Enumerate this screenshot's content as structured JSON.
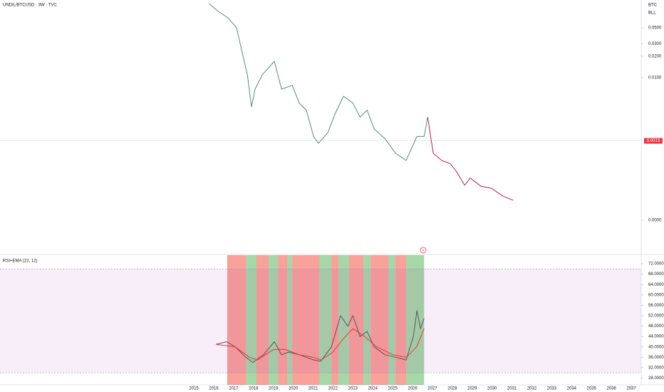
{
  "chart_data": [
    {
      "type": "line",
      "title": "UNDIL/BTCUSD · 3W · TVC",
      "currency_labels": [
        "BTC",
        "BLL"
      ],
      "log_scale": true,
      "xlim": [
        2005.25,
        2037.5
      ],
      "ylim": [
        4.9e-05,
        0.123
      ],
      "yticks": [
        {
          "value": 0.05,
          "label": "0.0500"
        },
        {
          "value": 0.03,
          "label": "0.0300"
        },
        {
          "value": 0.02,
          "label": "0.0200"
        },
        {
          "value": 0.01,
          "label": "0.0100"
        },
        {
          "value": 0.0001,
          "label": "0.0000"
        }
      ],
      "last_value": 0.0013,
      "last_color": "#f23645",
      "series": [
        {
          "color": "#4d8f7a",
          "x": [
            2015.75,
            2016.18,
            2016.72,
            2017.15,
            2017.44,
            2017.69,
            2017.9,
            2018.08,
            2018.44,
            2019.05,
            2019.41,
            2019.95,
            2020.3,
            2020.66,
            2021.02,
            2021.27,
            2021.74,
            2022.1,
            2022.53,
            2023.0,
            2023.36,
            2023.71,
            2024.07,
            2024.61,
            2025.15,
            2025.68,
            2026.22,
            2026.58,
            2026.76
          ],
          "values": [
            0.11,
            0.087,
            0.069,
            0.05,
            0.022,
            0.011,
            0.0039,
            0.0069,
            0.011,
            0.017,
            0.0069,
            0.0078,
            0.0044,
            0.0035,
            0.0015,
            0.0012,
            0.0017,
            0.0031,
            0.0055,
            0.0044,
            0.0028,
            0.0035,
            0.0019,
            0.0014,
            0.00087,
            0.00069,
            0.0015,
            0.0015,
            0.0028
          ]
        },
        {
          "color": "#c2185b",
          "x": [
            2026.76,
            2027.04,
            2027.47,
            2027.9,
            2028.19,
            2028.62,
            2028.9,
            2029.44,
            2029.98,
            2030.52,
            2031.06
          ],
          "values": [
            0.0028,
            0.00087,
            0.00069,
            0.00062,
            0.00049,
            0.00031,
            0.00039,
            0.0003,
            0.00028,
            0.00022,
            0.00019
          ]
        }
      ]
    },
    {
      "type": "line",
      "title": "RSI+EMA (22, 12)",
      "log_scale": false,
      "xlim": [
        2005.25,
        2037.5
      ],
      "ylim": [
        25.4,
        75.3
      ],
      "yticks": [
        {
          "value": 72,
          "label": "72.0000"
        },
        {
          "value": 68,
          "label": "68.0000"
        },
        {
          "value": 64,
          "label": "64.0000"
        },
        {
          "value": 60,
          "label": "60.0000"
        },
        {
          "value": 56,
          "label": "56.0000"
        },
        {
          "value": 52,
          "label": "52.0000"
        },
        {
          "value": 48,
          "label": "48.0000"
        },
        {
          "value": 44,
          "label": "44.0000"
        },
        {
          "value": 40,
          "label": "40.0000"
        },
        {
          "value": 36,
          "label": "36.0000"
        },
        {
          "value": 32,
          "label": "32.0000"
        },
        {
          "value": 28,
          "label": "28.0000"
        }
      ],
      "xticks": [
        2015,
        2016,
        2017,
        2018,
        2019,
        2020,
        2021,
        2022,
        2023,
        2024,
        2025,
        2026,
        2027,
        2028,
        2029,
        2030,
        2031,
        2032,
        2033,
        2034,
        2035,
        2036,
        2037
      ],
      "band_lower": 30,
      "band_upper": 70,
      "band_color": "#9c27b0",
      "zones": [
        {
          "start": 2016.68,
          "end": 2017.62,
          "color": "#f44336"
        },
        {
          "start": 2017.62,
          "end": 2018.15,
          "color": "#4caf50"
        },
        {
          "start": 2018.15,
          "end": 2018.76,
          "color": "#f44336"
        },
        {
          "start": 2018.76,
          "end": 2019.23,
          "color": "#4caf50"
        },
        {
          "start": 2019.23,
          "end": 2019.7,
          "color": "#f44336"
        },
        {
          "start": 2019.7,
          "end": 2019.95,
          "color": "#4caf50"
        },
        {
          "start": 2019.95,
          "end": 2021.31,
          "color": "#f44336"
        },
        {
          "start": 2021.31,
          "end": 2021.92,
          "color": "#4caf50"
        },
        {
          "start": 2021.92,
          "end": 2022.28,
          "color": "#f44336"
        },
        {
          "start": 2022.28,
          "end": 2022.81,
          "color": "#4caf50"
        },
        {
          "start": 2022.81,
          "end": 2023.53,
          "color": "#f44336"
        },
        {
          "start": 2023.53,
          "end": 2023.89,
          "color": "#4caf50"
        },
        {
          "start": 2023.89,
          "end": 2024.78,
          "color": "#f44336"
        },
        {
          "start": 2024.78,
          "end": 2025.14,
          "color": "#4caf50"
        },
        {
          "start": 2025.14,
          "end": 2025.68,
          "color": "#f44336"
        },
        {
          "start": 2025.68,
          "end": 2026.58,
          "color": "#4caf50"
        }
      ],
      "series": [
        {
          "color": "#555555",
          "x": [
            2016.11,
            2016.65,
            2017.08,
            2017.62,
            2017.97,
            2018.51,
            2019.05,
            2019.41,
            2019.77,
            2020.3,
            2021.02,
            2021.38,
            2021.92,
            2022.38,
            2022.74,
            2023.0,
            2023.36,
            2023.71,
            2024.07,
            2024.61,
            2025.15,
            2025.68,
            2026.04,
            2026.22,
            2026.4,
            2026.58
          ],
          "values": [
            41,
            42,
            40,
            36,
            34,
            37,
            42,
            37,
            38,
            37,
            35,
            34.5,
            40,
            52,
            48,
            52,
            44,
            46,
            40,
            37,
            36,
            35,
            44,
            54,
            47,
            51
          ]
        },
        {
          "color": "#e53935",
          "x": [
            2016.11,
            2017.08,
            2017.8,
            2018.2,
            2019.0,
            2019.6,
            2020.3,
            2021.0,
            2021.4,
            2022.0,
            2022.5,
            2023.0,
            2023.6,
            2024.2,
            2025.0,
            2025.7,
            2026.2,
            2026.58
          ],
          "values": [
            41,
            40,
            36,
            35,
            39,
            39,
            37,
            36,
            35,
            38,
            43,
            47,
            44,
            40,
            37,
            36,
            40,
            47
          ]
        }
      ]
    }
  ]
}
